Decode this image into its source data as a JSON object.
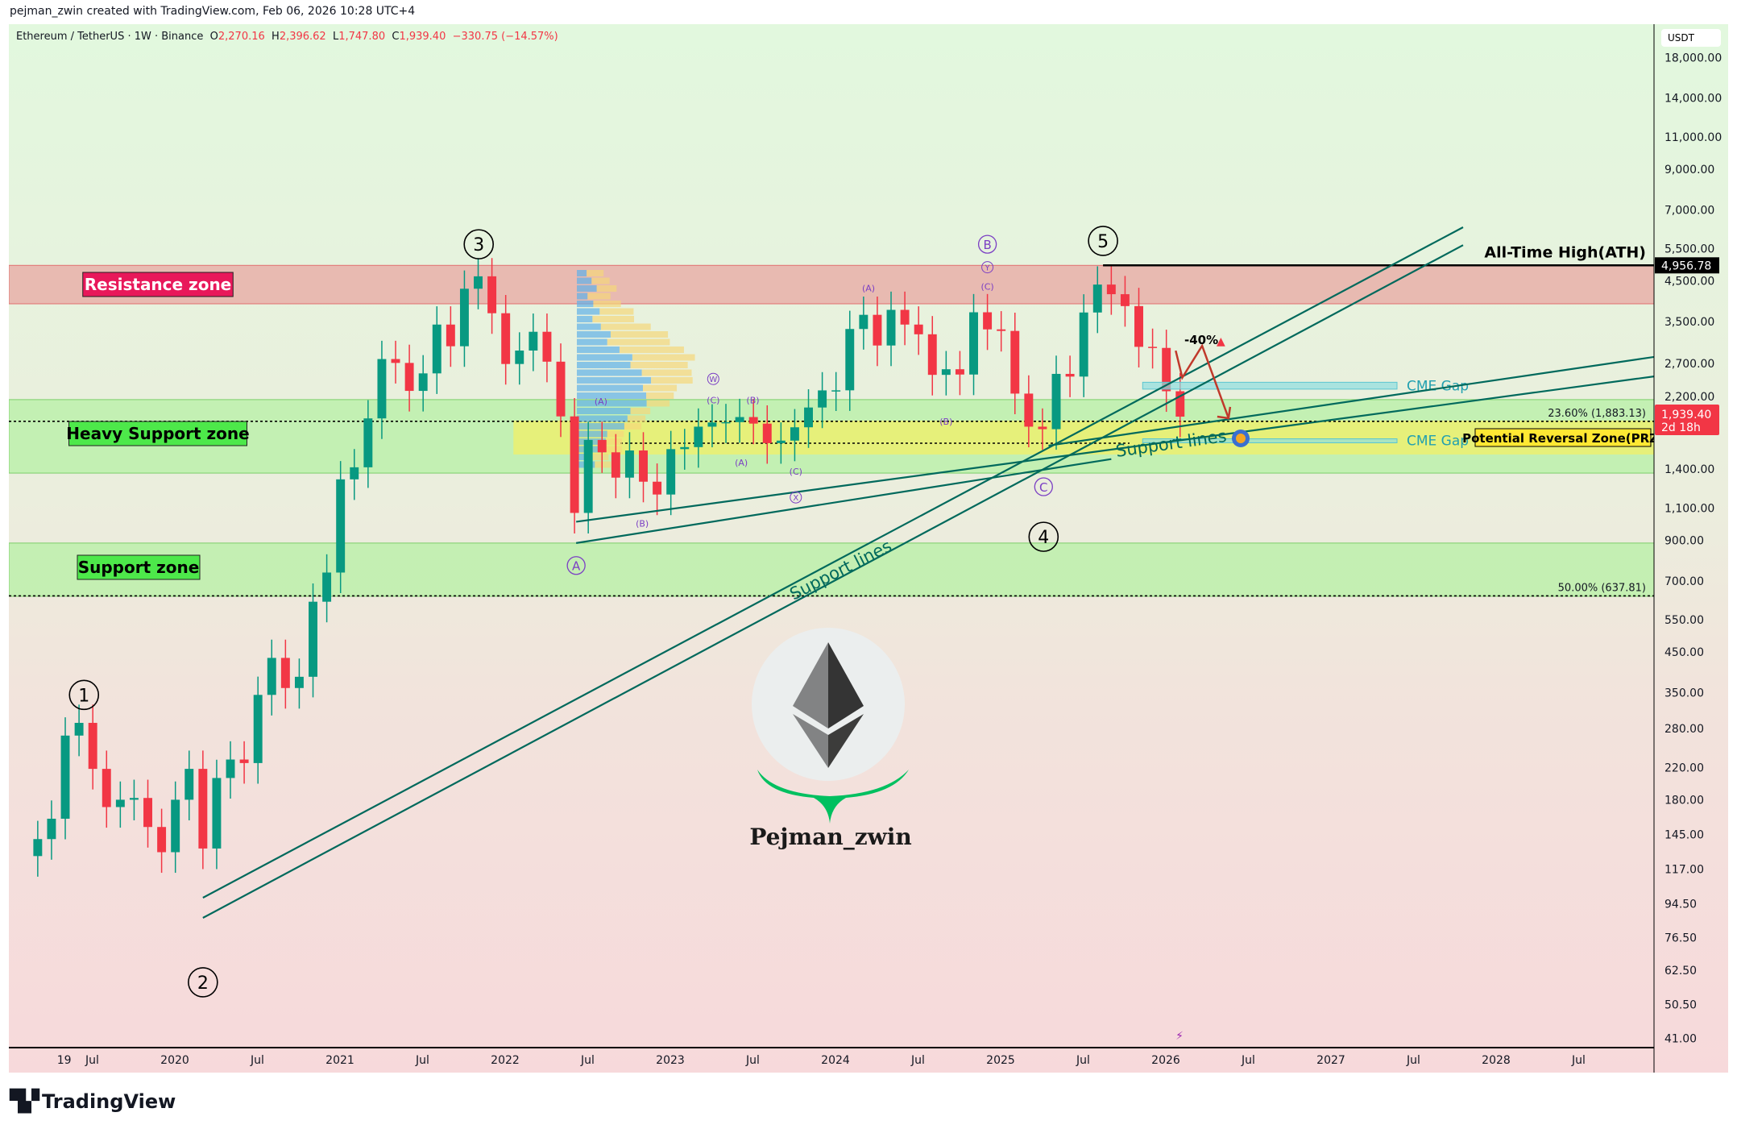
{
  "credit": "pejman_zwin created with TradingView.com, Feb 06, 2026 10:28 UTC+4",
  "legend": {
    "symbol": "Ethereum / TetherUS · 1W · Binance",
    "o_label": "O",
    "open": "2,270.16",
    "h_label": "H",
    "high": "2,396.62",
    "l_label": "L",
    "low": "1,747.80",
    "c_label": "C",
    "close": "1,939.40",
    "change": "−330.75 (−14.57%)"
  },
  "price_axis": {
    "unit": "USDT",
    "scale": "log",
    "ticks": [
      "18,000.00",
      "14,000.00",
      "11,000.00",
      "9,000.00",
      "7,000.00",
      "5,500.00",
      "4,500.00",
      "3,500.00",
      "2,700.00",
      "2,200.00",
      "1,400.00",
      "1,100.00",
      "900.00",
      "700.00",
      "550.00",
      "450.00",
      "350.00",
      "280.00",
      "220.00",
      "180.00",
      "145.00",
      "117.00",
      "94.50",
      "76.50",
      "62.50",
      "50.50",
      "41.00"
    ],
    "ath_tag": "4,956.78",
    "last_tag": "1,939.40",
    "countdown": "2d 18h"
  },
  "time_axis": {
    "ticks": [
      {
        "label": "19",
        "t": 2019.33
      },
      {
        "label": "Jul",
        "t": 2019.5
      },
      {
        "label": "2020",
        "t": 2020
      },
      {
        "label": "Jul",
        "t": 2020.5
      },
      {
        "label": "2021",
        "t": 2021
      },
      {
        "label": "Jul",
        "t": 2021.5
      },
      {
        "label": "2022",
        "t": 2022
      },
      {
        "label": "Jul",
        "t": 2022.5
      },
      {
        "label": "2023",
        "t": 2023
      },
      {
        "label": "Jul",
        "t": 2023.5
      },
      {
        "label": "2024",
        "t": 2024
      },
      {
        "label": "Jul",
        "t": 2024.5
      },
      {
        "label": "2025",
        "t": 2025
      },
      {
        "label": "Jul",
        "t": 2025.5
      },
      {
        "label": "2026",
        "t": 2026
      },
      {
        "label": "Jul",
        "t": 2026.5
      },
      {
        "label": "2027",
        "t": 2027
      },
      {
        "label": "Jul",
        "t": 2027.5
      },
      {
        "label": "2028",
        "t": 2028
      },
      {
        "label": "Jul",
        "t": 2028.5
      }
    ]
  },
  "colors": {
    "up": "#089981",
    "down": "#f23645",
    "resistance": "#e8a0a0",
    "support": "#a8ee98",
    "prz": "#f0f060",
    "trendline": "#00695c",
    "wave": "#7b3fc4",
    "cme": "#5cc6d0"
  },
  "chart_data": {
    "type": "candlestick",
    "symbol": "ETHUSDT",
    "interval": "1W",
    "yscale": "log",
    "ylim": [
      41,
      18000
    ],
    "start": 2019.17,
    "period_months": 1,
    "closes": [
      141,
      160,
      268,
      290,
      218,
      172,
      180,
      182,
      152,
      130,
      180,
      218,
      133,
      206,
      231,
      226,
      345,
      434,
      360,
      386,
      615,
      737,
      1314,
      1416,
      1918,
      2772,
      2706,
      2275,
      2536,
      3433,
      3001,
      4288,
      4631,
      3683,
      2688,
      2922,
      3283,
      2727,
      1942,
      1067,
      1678,
      1554,
      1328,
      1572,
      1295,
      1196,
      1585,
      1605,
      1822,
      1870,
      1874,
      1934,
      1857,
      1645,
      1671,
      1815,
      2052,
      2282,
      2283,
      3340,
      3647,
      3015,
      3761,
      3433,
      3232,
      2513,
      2602,
      2518,
      3705,
      3332,
      3300,
      2237,
      1822,
      1794,
      2528,
      2486,
      3700,
      4400,
      4145,
      3850,
      2990,
      2970,
      2270,
      1939
    ],
    "zones": [
      {
        "name": "Resistance zone",
        "from": 3905,
        "to": 4957,
        "color": "#e8a7a2"
      },
      {
        "name": "Heavy Support zone",
        "from": 1366,
        "to": 2155,
        "color": "#b5f0a4"
      },
      {
        "name": "Support zone",
        "from": 636,
        "to": 885,
        "color": "#b5f0a4"
      },
      {
        "name": "Potential Reversal Zone(PRZ)",
        "from": 1533,
        "to": 1892,
        "t_from": 2022.05,
        "color": "#ecf070"
      }
    ],
    "ath": {
      "label": "All-Time High(ATH)",
      "price": 4956.78,
      "t_from": 2025.62
    },
    "fib": [
      {
        "label": "23.60% (1,883.13)",
        "price": 1883.13
      },
      {
        "label": "50.00% (637.81)",
        "price": 637.81
      }
    ],
    "cme_gaps": [
      {
        "label": "CME Gap",
        "from": 2300,
        "to": 2400,
        "t_from": 2025.86,
        "t_to": 2027.4
      },
      {
        "label": "CME Gap",
        "from": 1655,
        "to": 1690,
        "t_from": 2025.86,
        "t_to": 2027.4
      }
    ],
    "trendlines": [
      {
        "p1": [
          2020.17,
          98
        ],
        "p2": [
          2027.8,
          6280
        ]
      },
      {
        "p1": [
          2020.17,
          86.5
        ],
        "p2": [
          2027.8,
          5620
        ]
      },
      {
        "p1": [
          2022.43,
          1010
        ],
        "p2": [
          2028.96,
          2490
        ]
      },
      {
        "p1": [
          2022.43,
          885
        ],
        "p2": [
          2025.67,
          1490
        ]
      },
      {
        "p1": [
          2025.29,
          1620
        ],
        "p2": [
          2028.96,
          2810
        ]
      }
    ],
    "support_line_labels": [
      "Support lines",
      "Support lines"
    ],
    "projection": {
      "label": "-40%",
      "path": [
        [
          2026.06,
          2920
        ],
        [
          2026.1,
          2470
        ],
        [
          2026.22,
          3010
        ],
        [
          2026.38,
          1920
        ]
      ]
    },
    "waves": [
      {
        "label": "1",
        "t": 2019.45,
        "price": 345,
        "style": "circle"
      },
      {
        "label": "2",
        "t": 2020.17,
        "price": 58,
        "style": "circle"
      },
      {
        "label": "3",
        "t": 2021.84,
        "price": 5650,
        "style": "circle"
      },
      {
        "label": "4",
        "t": 2025.26,
        "price": 920,
        "style": "circle"
      },
      {
        "label": "5",
        "t": 2025.62,
        "price": 5770,
        "style": "circle"
      },
      {
        "label": "A",
        "t": 2022.43,
        "price": 770,
        "style": "purple-circle"
      },
      {
        "label": "B",
        "t": 2024.92,
        "price": 5650,
        "style": "purple-circle"
      },
      {
        "label": "C",
        "t": 2025.26,
        "price": 1255,
        "style": "purple-circle"
      },
      {
        "label": "(A)",
        "t": 2022.58,
        "price": 2130,
        "style": "purple"
      },
      {
        "label": "(B)",
        "t": 2022.83,
        "price": 1000,
        "style": "purple"
      },
      {
        "label": "W",
        "t": 2023.26,
        "price": 2450,
        "style": "purple-circle-small"
      },
      {
        "label": "(C)",
        "t": 2023.26,
        "price": 2150,
        "style": "purple"
      },
      {
        "label": "(B)",
        "t": 2023.5,
        "price": 2150,
        "style": "purple"
      },
      {
        "label": "(A)",
        "t": 2023.43,
        "price": 1460,
        "style": "purple"
      },
      {
        "label": "(C)",
        "t": 2023.76,
        "price": 1380,
        "style": "purple"
      },
      {
        "label": "X",
        "t": 2023.76,
        "price": 1175,
        "style": "purple-circle-small"
      },
      {
        "label": "(A)",
        "t": 2024.2,
        "price": 4300,
        "style": "purple"
      },
      {
        "label": "(B)",
        "t": 2024.67,
        "price": 1880,
        "style": "purple"
      },
      {
        "label": "Y",
        "t": 2024.92,
        "price": 4900,
        "style": "purple-circle-small"
      },
      {
        "label": "(C)",
        "t": 2024.92,
        "price": 4350,
        "style": "purple"
      }
    ]
  },
  "logo": {
    "name": "Pejman_zwin"
  },
  "footer": {
    "brand": "TradingView"
  }
}
